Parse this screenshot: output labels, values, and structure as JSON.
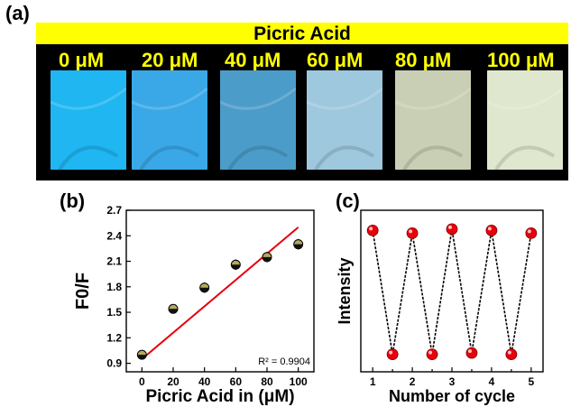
{
  "panel_labels": {
    "a": "(a)",
    "b": "(b)",
    "c": "(c)"
  },
  "photo_strip": {
    "title": "Picric Acid",
    "concentration_labels": [
      "0 μM",
      "20 μM",
      "40 μM",
      "60 μM",
      "80 μM",
      "100 μM"
    ],
    "swatch_colors": [
      "#1fb6f2",
      "#3aa8e6",
      "#4c9cc9",
      "#9ec8dd",
      "#c9cfb4",
      "#dfe7cf"
    ],
    "colors": {
      "title_bar": "#ffff00",
      "label_text": "#ffff00",
      "background": "#000000"
    }
  },
  "chart_data": [
    {
      "type": "scatter",
      "xlabel": "Picric Acid in (μM)",
      "ylabel": "F0/F",
      "x": [
        0,
        20,
        40,
        60,
        80,
        100
      ],
      "y": [
        1.0,
        1.54,
        1.79,
        2.06,
        2.15,
        2.3
      ],
      "y_error": [
        0.02,
        0.03,
        0.04,
        0.04,
        0.04,
        0.04
      ],
      "xlim": [
        -10,
        110
      ],
      "ylim": [
        0.8,
        2.7
      ],
      "xticks": [
        0,
        20,
        40,
        60,
        80,
        100
      ],
      "yticks": [
        0.9,
        1.2,
        1.5,
        1.8,
        2.1,
        2.4,
        2.7
      ],
      "fit_line": {
        "x": [
          0,
          100
        ],
        "y": [
          0.95,
          2.5
        ],
        "color": "#e8000b"
      },
      "annotation": "R² = 0.9904",
      "marker_color": "#b5a95a"
    },
    {
      "type": "line",
      "xlabel": "Number of cycle",
      "ylabel": "Intensity",
      "x": [
        1,
        1.5,
        2,
        2.5,
        3,
        3.5,
        4,
        4.5,
        5
      ],
      "y": [
        0.95,
        0.03,
        0.93,
        0.03,
        0.96,
        0.04,
        0.95,
        0.03,
        0.93
      ],
      "xlim": [
        0.7,
        5.3
      ],
      "ylim": [
        -0.1,
        1.1
      ],
      "xticks": [
        1,
        1.5,
        2,
        2.5,
        3,
        3.5,
        4,
        4.5,
        5
      ],
      "xtick_labels": [
        "1",
        "",
        "2",
        "",
        "3",
        "",
        "4",
        "",
        "5"
      ],
      "marker_color": "#e8000b"
    }
  ]
}
